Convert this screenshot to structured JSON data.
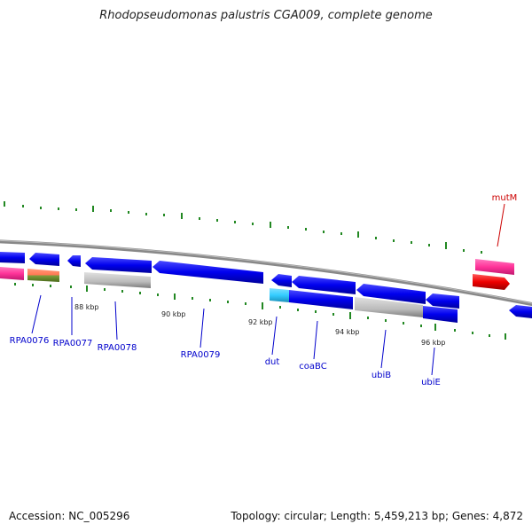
{
  "title": "Rhodopseudomonas palustris CGA009, complete genome",
  "accession": "Accession: NC_005296",
  "topology": "Topology: circular; Length: 5,459,213 bp; Genes: 4,872",
  "scale_labels": [
    "88 kbp",
    "90 kbp",
    "92 kbp",
    "94 kbp",
    "96 kbp"
  ],
  "gene_labels": {
    "mutM": "mutM",
    "rpa0076": "RPA0076",
    "rpa0077": "RPA0077",
    "rpa0078": "RPA0078",
    "rpa0079": "RPA0079",
    "dut": "dut",
    "coabc": "coaBC",
    "ubib": "ubiB",
    "ubie": "ubiE"
  },
  "colors": {
    "forward_gene": "#0000ee",
    "highlight": "#ff3399",
    "red_gene": "#ee0000",
    "gray_gene": "#bbbbbb",
    "cyan_gene": "#33ccff",
    "tick": "#228822",
    "backbone": "#888888",
    "label_blue": "#0000cc",
    "label_red": "#cc0000"
  }
}
